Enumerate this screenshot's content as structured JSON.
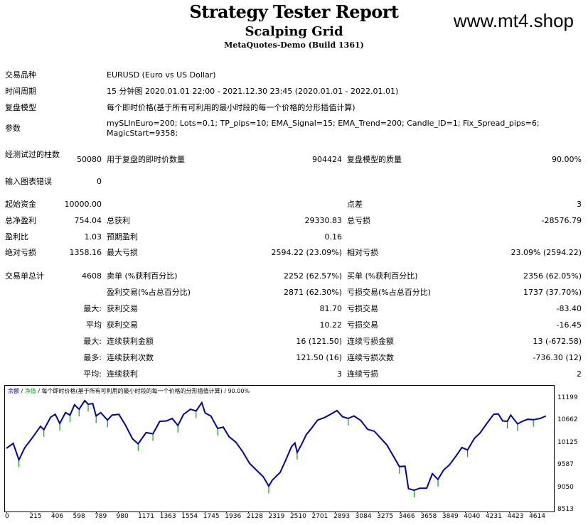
{
  "header": {
    "title": "Strategy Tester Report",
    "subtitle": "Scalping Grid",
    "build": "MetaQuotes-Demo (Build 1361)",
    "watermark": "www.mt4.shop"
  },
  "info": {
    "symbol_label": "交易品种",
    "symbol_value": "EURUSD (Euro vs US Dollar)",
    "period_label": "时间周期",
    "period_value": "15 分钟图 2020.01.01 22:00 - 2021.12.30 23:45 (2020.01.01 - 2022.01.01)",
    "model_label": "复盘模型",
    "model_value": "每个即时价格(基于所有可利用的最小时段的每一个价格的分形插值计算)",
    "params_label": "参数",
    "params_value": "mySLInEuro=200; Lots=0.1; TP_pips=10; EMA_Signal=15; EMA_Trend=200; Candle_ID=1; Fix_Spread_pips=6; MagicStart=9358;"
  },
  "bars": {
    "bars_label": "经测试过的柱数",
    "bars_value": "50080",
    "ticks_label": "用于复盘的即时价数量",
    "ticks_value": "904424",
    "quality_label": "复盘模型的质量",
    "quality_value": "90.00%",
    "errors_label": "输入图表错误",
    "errors_value": "0"
  },
  "stats": {
    "deposit_label": "起始资金",
    "deposit_value": "10000.00",
    "spread_label": "点差",
    "spread_value": "3",
    "net_label": "总净盈利",
    "net_value": "754.04",
    "gross_profit_label": "总获利",
    "gross_profit_value": "29330.83",
    "gross_loss_label": "总亏损",
    "gross_loss_value": "-28576.79",
    "pf_label": "盈利比",
    "pf_value": "1.03",
    "payoff_label": "预期盈利",
    "payoff_value": "0.16",
    "abs_dd_label": "绝对亏损",
    "abs_dd_value": "1358.16",
    "max_dd_label": "最大亏损",
    "max_dd_value": "2594.22 (23.09%)",
    "rel_dd_label": "相对亏损",
    "rel_dd_value": "23.09% (2594.22)",
    "total_label": "交易单总计",
    "total_value": "4608",
    "short_label": "卖单 (%获利百分比)",
    "short_value": "2252 (62.57%)",
    "long_label": "买单 (%获利百分比)",
    "long_value": "2356 (62.05%)",
    "profit_trades_label": "盈利交易(%占总百分比)",
    "profit_trades_value": "2871 (62.30%)",
    "loss_trades_label": "亏损交易(%占总百分比)",
    "loss_trades_value": "1737 (37.70%)",
    "max_label": "最大:",
    "max_win_label": "获利交易",
    "max_win_value": "81.70",
    "max_loss_label": "亏损交易",
    "max_loss_value": "-83.40",
    "avg_label": "平均",
    "avg_win_label": "获利交易",
    "avg_win_value": "10.22",
    "avg_loss_label": "亏损交易",
    "avg_loss_value": "-16.45",
    "max2_label": "最大:",
    "cons_win_amt_label": "连续获利金额",
    "cons_win_amt_value": "16 (121.50)",
    "cons_loss_amt_label": "连续亏损金额",
    "cons_loss_amt_value": "13 (-672.58)",
    "most_label": "最多:",
    "cons_win_cnt_label": "连续获利次数",
    "cons_win_cnt_value": "121.50 (16)",
    "cons_loss_cnt_label": "连续亏损次数",
    "cons_loss_cnt_value": "-736.30 (12)",
    "avg2_label": "平均:",
    "avg_cons_win_label": "连续获利",
    "avg_cons_win_value": "3",
    "avg_cons_loss_label": "连续亏损",
    "avg_cons_loss_value": "2"
  },
  "chart_data": {
    "type": "line",
    "legend_balance": "余额",
    "legend_sep1": " / ",
    "legend_equity": "净值",
    "legend_rest": " / 每个即时价格(基于所有可利用的最小时段的每一个价格的分形插值计算) / 90.00%",
    "balance_color": "#0000aa",
    "equity_color": "#00aa00",
    "ylim": [
      8513,
      11199
    ],
    "xlim": [
      0,
      4770
    ],
    "y_ticks": [
      "11199",
      "10662",
      "10125",
      "9587",
      "9050",
      "8513"
    ],
    "x_ticks": [
      "0",
      "215",
      "406",
      "598",
      "789",
      "980",
      "1171",
      "1363",
      "1554",
      "1745",
      "1936",
      "2128",
      "2319",
      "2510",
      "2701",
      "2893",
      "3084",
      "3275",
      "3466",
      "3658",
      "3849",
      "4040",
      "4231",
      "4423",
      "4614"
    ],
    "series": [
      {
        "values": [
          [
            0,
            10000
          ],
          [
            60,
            10120
          ],
          [
            110,
            9720
          ],
          [
            160,
            10010
          ],
          [
            230,
            10260
          ],
          [
            300,
            10530
          ],
          [
            330,
            10450
          ],
          [
            390,
            10750
          ],
          [
            430,
            10820
          ],
          [
            470,
            10600
          ],
          [
            520,
            10860
          ],
          [
            560,
            10800
          ],
          [
            600,
            11050
          ],
          [
            640,
            10940
          ],
          [
            690,
            11150
          ],
          [
            720,
            11060
          ],
          [
            760,
            11080
          ],
          [
            790,
            10780
          ],
          [
            830,
            10860
          ],
          [
            890,
            10680
          ],
          [
            930,
            10800
          ],
          [
            990,
            10820
          ],
          [
            1050,
            10550
          ],
          [
            1110,
            10230
          ],
          [
            1160,
            10110
          ],
          [
            1230,
            10380
          ],
          [
            1290,
            10350
          ],
          [
            1350,
            10650
          ],
          [
            1410,
            10660
          ],
          [
            1460,
            10720
          ],
          [
            1510,
            10550
          ],
          [
            1560,
            10820
          ],
          [
            1620,
            10940
          ],
          [
            1670,
            10900
          ],
          [
            1720,
            11100
          ],
          [
            1750,
            10850
          ],
          [
            1800,
            10780
          ],
          [
            1860,
            10480
          ],
          [
            1910,
            10510
          ],
          [
            1960,
            10280
          ],
          [
            2020,
            10150
          ],
          [
            2080,
            9920
          ],
          [
            2140,
            9640
          ],
          [
            2200,
            9480
          ],
          [
            2260,
            9320
          ],
          [
            2310,
            9090
          ],
          [
            2340,
            9230
          ],
          [
            2380,
            9340
          ],
          [
            2410,
            9420
          ],
          [
            2460,
            9720
          ],
          [
            2510,
            10040
          ],
          [
            2540,
            10130
          ],
          [
            2560,
            9900
          ],
          [
            2600,
            10100
          ],
          [
            2640,
            10330
          ],
          [
            2680,
            10460
          ],
          [
            2740,
            10680
          ],
          [
            2800,
            10740
          ],
          [
            2860,
            10830
          ],
          [
            2910,
            10910
          ],
          [
            2960,
            10760
          ],
          [
            3010,
            10720
          ],
          [
            3060,
            10780
          ],
          [
            3120,
            10670
          ],
          [
            3180,
            10460
          ],
          [
            3240,
            10410
          ],
          [
            3290,
            10260
          ],
          [
            3350,
            10080
          ],
          [
            3410,
            9800
          ],
          [
            3460,
            9560
          ],
          [
            3510,
            9570
          ],
          [
            3540,
            9030
          ],
          [
            3590,
            8990
          ],
          [
            3640,
            9040
          ],
          [
            3700,
            9040
          ],
          [
            3750,
            9390
          ],
          [
            3800,
            9250
          ],
          [
            3850,
            9480
          ],
          [
            3900,
            9600
          ],
          [
            3960,
            9820
          ],
          [
            4010,
            10020
          ],
          [
            4060,
            9960
          ],
          [
            4120,
            10240
          ],
          [
            4170,
            10370
          ],
          [
            4230,
            10600
          ],
          [
            4290,
            10820
          ],
          [
            4330,
            10830
          ],
          [
            4370,
            10660
          ],
          [
            4410,
            10650
          ],
          [
            4440,
            10800
          ],
          [
            4500,
            10590
          ],
          [
            4550,
            10660
          ],
          [
            4590,
            10700
          ],
          [
            4640,
            10690
          ],
          [
            4700,
            10720
          ],
          [
            4750,
            10780
          ]
        ]
      }
    ]
  }
}
